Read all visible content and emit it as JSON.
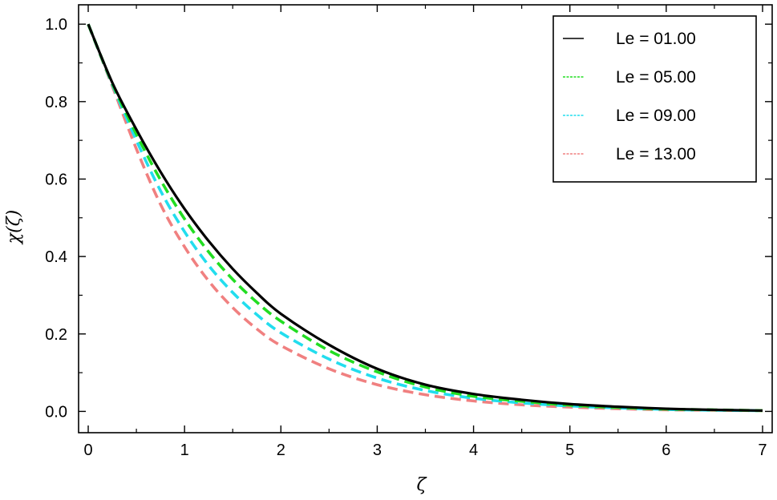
{
  "chart_data": {
    "type": "line",
    "title": "",
    "xlabel": "ζ",
    "ylabel": "χ(ζ)",
    "xlim": [
      -0.1,
      7.1
    ],
    "ylim": [
      -0.055,
      1.05
    ],
    "x_ticks": [
      0,
      1,
      2,
      3,
      4,
      5,
      6,
      7
    ],
    "x_tick_labels": [
      "0",
      "1",
      "2",
      "3",
      "4",
      "5",
      "6",
      "7"
    ],
    "y_ticks": [
      0.0,
      0.2,
      0.4,
      0.6,
      0.8,
      1.0
    ],
    "y_tick_labels": [
      "0.0",
      "0.2",
      "0.4",
      "0.6",
      "0.8",
      "1.0"
    ],
    "grid": false,
    "legend_position": "top-right",
    "x": [
      0,
      0.25,
      0.5,
      0.75,
      1,
      1.25,
      1.5,
      1.75,
      2,
      2.5,
      3,
      3.5,
      4,
      4.5,
      5,
      5.5,
      6,
      6.5,
      7
    ],
    "series": [
      {
        "name": "Le = 01.00",
        "color": "#000000",
        "dash": "solid",
        "values": [
          1.0,
          0.849,
          0.728,
          0.619,
          0.523,
          0.44,
          0.368,
          0.306,
          0.252,
          0.172,
          0.11,
          0.069,
          0.045,
          0.03,
          0.019,
          0.012,
          0.007,
          0.004,
          0.002
        ]
      },
      {
        "name": "Le = 05.00",
        "color": "#22dd22",
        "dash": "dashed",
        "values": [
          1.0,
          0.847,
          0.716,
          0.598,
          0.497,
          0.412,
          0.341,
          0.282,
          0.233,
          0.157,
          0.102,
          0.063,
          0.039,
          0.026,
          0.016,
          0.01,
          0.006,
          0.004,
          0.002
        ]
      },
      {
        "name": "Le = 09.00",
        "color": "#22ddee",
        "dash": "dashed",
        "values": [
          1.0,
          0.844,
          0.7,
          0.57,
          0.464,
          0.377,
          0.307,
          0.25,
          0.203,
          0.135,
          0.086,
          0.054,
          0.034,
          0.022,
          0.014,
          0.009,
          0.005,
          0.003,
          0.002
        ]
      },
      {
        "name": "Le = 13.00",
        "color": "#f08080",
        "dash": "dashed",
        "values": [
          1.0,
          0.84,
          0.678,
          0.535,
          0.425,
          0.337,
          0.268,
          0.213,
          0.17,
          0.11,
          0.069,
          0.043,
          0.027,
          0.017,
          0.011,
          0.007,
          0.004,
          0.003,
          0.002
        ]
      }
    ]
  }
}
